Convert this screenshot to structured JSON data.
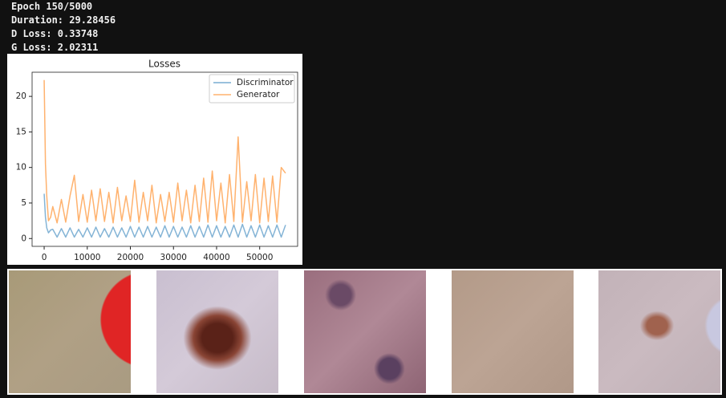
{
  "output_lines": [
    "Epoch 150/5000",
    "Duration: 29.28456",
    "D Loss: 0.33748",
    "G Loss: 2.02311"
  ],
  "chart_data": {
    "type": "line",
    "title": "Losses",
    "x": [
      0,
      300,
      600,
      1000,
      1500,
      2000,
      3000,
      4000,
      5000,
      6000,
      7000,
      8000,
      9000,
      10000,
      11000,
      12000,
      13000,
      14000,
      15000,
      16000,
      17000,
      18000,
      19000,
      20000,
      21000,
      22000,
      23000,
      24000,
      25000,
      26000,
      27000,
      28000,
      29000,
      30000,
      31000,
      32000,
      33000,
      34000,
      35000,
      36000,
      37000,
      38000,
      39000,
      40000,
      41000,
      42000,
      43000,
      44000,
      45000,
      46000,
      47000,
      48000,
      49000,
      50000,
      51000,
      52000,
      53000,
      54000,
      55000,
      56000
    ],
    "series": [
      {
        "name": "Discriminator",
        "color": "#1f77b4",
        "values": [
          6.3,
          3.0,
          1.5,
          0.8,
          1.2,
          1.3,
          0.2,
          1.4,
          0.2,
          1.5,
          0.2,
          1.3,
          0.2,
          1.5,
          0.2,
          1.6,
          0.2,
          1.4,
          0.2,
          1.6,
          0.2,
          1.5,
          0.2,
          1.7,
          0.2,
          1.6,
          0.2,
          1.7,
          0.2,
          1.6,
          0.2,
          1.8,
          0.2,
          1.7,
          0.2,
          1.6,
          0.2,
          1.8,
          0.2,
          1.7,
          0.2,
          1.9,
          0.2,
          1.8,
          0.2,
          1.7,
          0.2,
          1.9,
          0.2,
          2.0,
          0.2,
          1.8,
          0.2,
          1.9,
          0.2,
          1.8,
          0.2,
          1.9,
          0.2,
          1.9
        ]
      },
      {
        "name": "Generator",
        "color": "#ff7f0e",
        "values": [
          22.3,
          10.5,
          6.0,
          2.5,
          3.0,
          4.5,
          2.2,
          5.5,
          2.3,
          6.0,
          8.9,
          2.4,
          6.2,
          2.3,
          6.8,
          2.5,
          7.0,
          2.4,
          6.5,
          2.2,
          7.2,
          2.5,
          6.0,
          2.4,
          8.2,
          2.3,
          6.5,
          2.5,
          7.5,
          2.2,
          6.2,
          2.4,
          6.5,
          2.3,
          7.8,
          2.5,
          6.8,
          2.2,
          7.5,
          2.4,
          8.5,
          2.3,
          9.5,
          2.5,
          7.8,
          2.2,
          9.0,
          2.4,
          14.3,
          2.3,
          8.0,
          2.5,
          9.0,
          2.2,
          8.5,
          2.4,
          8.8,
          2.3,
          10.0,
          9.2
        ]
      }
    ],
    "xlim": [
      -2800,
      58800
    ],
    "xticks": [
      0,
      10000,
      20000,
      30000,
      40000,
      50000
    ],
    "ylim": [
      -1.1,
      23.4
    ],
    "yticks": [
      0,
      5,
      10,
      15,
      20
    ],
    "legend": "upper right"
  }
}
